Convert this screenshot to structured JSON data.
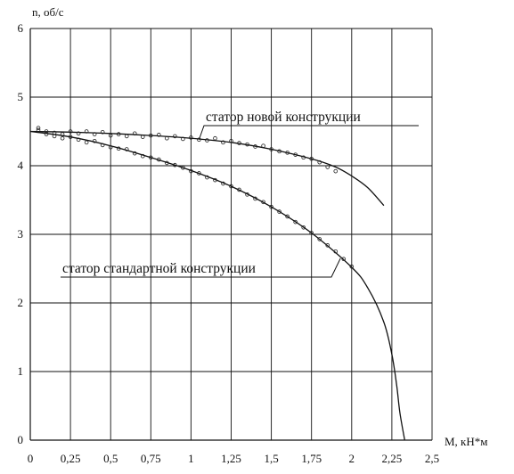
{
  "chart_data": {
    "type": "line",
    "title": "",
    "xlabel": "M, кН*м",
    "ylabel": "n, об/с",
    "xlim": [
      0,
      2.5
    ],
    "ylim": [
      0,
      6
    ],
    "x_ticks": [
      "0",
      "0,25",
      "0,5",
      "0,75",
      "1",
      "1,25",
      "1,5",
      "1,75",
      "2",
      "2,25",
      "2,5"
    ],
    "y_ticks": [
      "0",
      "1",
      "2",
      "3",
      "4",
      "5",
      "6"
    ],
    "grid": true,
    "series": [
      {
        "name": "статор новой конструкции",
        "x": [
          0,
          0.25,
          0.5,
          0.75,
          1.0,
          1.25,
          1.5,
          1.75,
          1.9,
          2.0,
          2.1,
          2.2
        ],
        "y": [
          4.5,
          4.49,
          4.47,
          4.44,
          4.4,
          4.34,
          4.24,
          4.1,
          3.98,
          3.85,
          3.68,
          3.42
        ],
        "points_x": [
          0.05,
          0.1,
          0.15,
          0.2,
          0.25,
          0.3,
          0.35,
          0.4,
          0.45,
          0.5,
          0.55,
          0.6,
          0.65,
          0.7,
          0.75,
          0.8,
          0.85,
          0.9,
          0.95,
          1.0,
          1.05,
          1.1,
          1.15,
          1.2,
          1.25,
          1.3,
          1.35,
          1.4,
          1.45,
          1.5,
          1.55,
          1.6,
          1.65,
          1.7,
          1.75,
          1.8,
          1.85,
          1.9
        ],
        "points_y": [
          4.55,
          4.5,
          4.48,
          4.46,
          4.5,
          4.47,
          4.5,
          4.46,
          4.49,
          4.44,
          4.46,
          4.43,
          4.47,
          4.42,
          4.44,
          4.45,
          4.4,
          4.43,
          4.39,
          4.41,
          4.38,
          4.37,
          4.4,
          4.34,
          4.36,
          4.33,
          4.31,
          4.28,
          4.29,
          4.24,
          4.21,
          4.19,
          4.16,
          4.12,
          4.1,
          4.05,
          3.98,
          3.92
        ]
      },
      {
        "name": "статор стандартной конструкции",
        "x": [
          0,
          0.25,
          0.5,
          0.75,
          1.0,
          1.25,
          1.5,
          1.75,
          2.0,
          2.1,
          2.2,
          2.25,
          2.28,
          2.3,
          2.33
        ],
        "y": [
          4.5,
          4.42,
          4.29,
          4.12,
          3.93,
          3.7,
          3.4,
          3.02,
          2.52,
          2.22,
          1.72,
          1.25,
          0.8,
          0.4,
          0.0
        ],
        "points_x": [
          0.05,
          0.1,
          0.15,
          0.2,
          0.25,
          0.3,
          0.35,
          0.4,
          0.45,
          0.5,
          0.55,
          0.6,
          0.65,
          0.7,
          0.75,
          0.8,
          0.85,
          0.9,
          0.95,
          1.0,
          1.05,
          1.1,
          1.15,
          1.2,
          1.25,
          1.3,
          1.35,
          1.4,
          1.45,
          1.5,
          1.55,
          1.6,
          1.65,
          1.7,
          1.75,
          1.8,
          1.85,
          1.9,
          1.95,
          2.0
        ],
        "points_y": [
          4.52,
          4.46,
          4.43,
          4.4,
          4.42,
          4.38,
          4.34,
          4.36,
          4.3,
          4.27,
          4.25,
          4.24,
          4.18,
          4.14,
          4.12,
          4.09,
          4.04,
          4.01,
          3.97,
          3.92,
          3.89,
          3.83,
          3.79,
          3.74,
          3.7,
          3.65,
          3.58,
          3.52,
          3.47,
          3.4,
          3.33,
          3.26,
          3.18,
          3.1,
          3.02,
          2.93,
          2.84,
          2.75,
          2.64,
          2.53
        ]
      }
    ],
    "annotations": [
      {
        "text": "статор новой конструкции",
        "points_to": "статор новой конструкции",
        "anchor_x": 1.05,
        "anchor_y": 4.38
      },
      {
        "text": "статор стандартной конструкции",
        "points_to": "статор стандартной конструкции",
        "anchor_x": 1.93,
        "anchor_y": 2.65
      }
    ]
  }
}
